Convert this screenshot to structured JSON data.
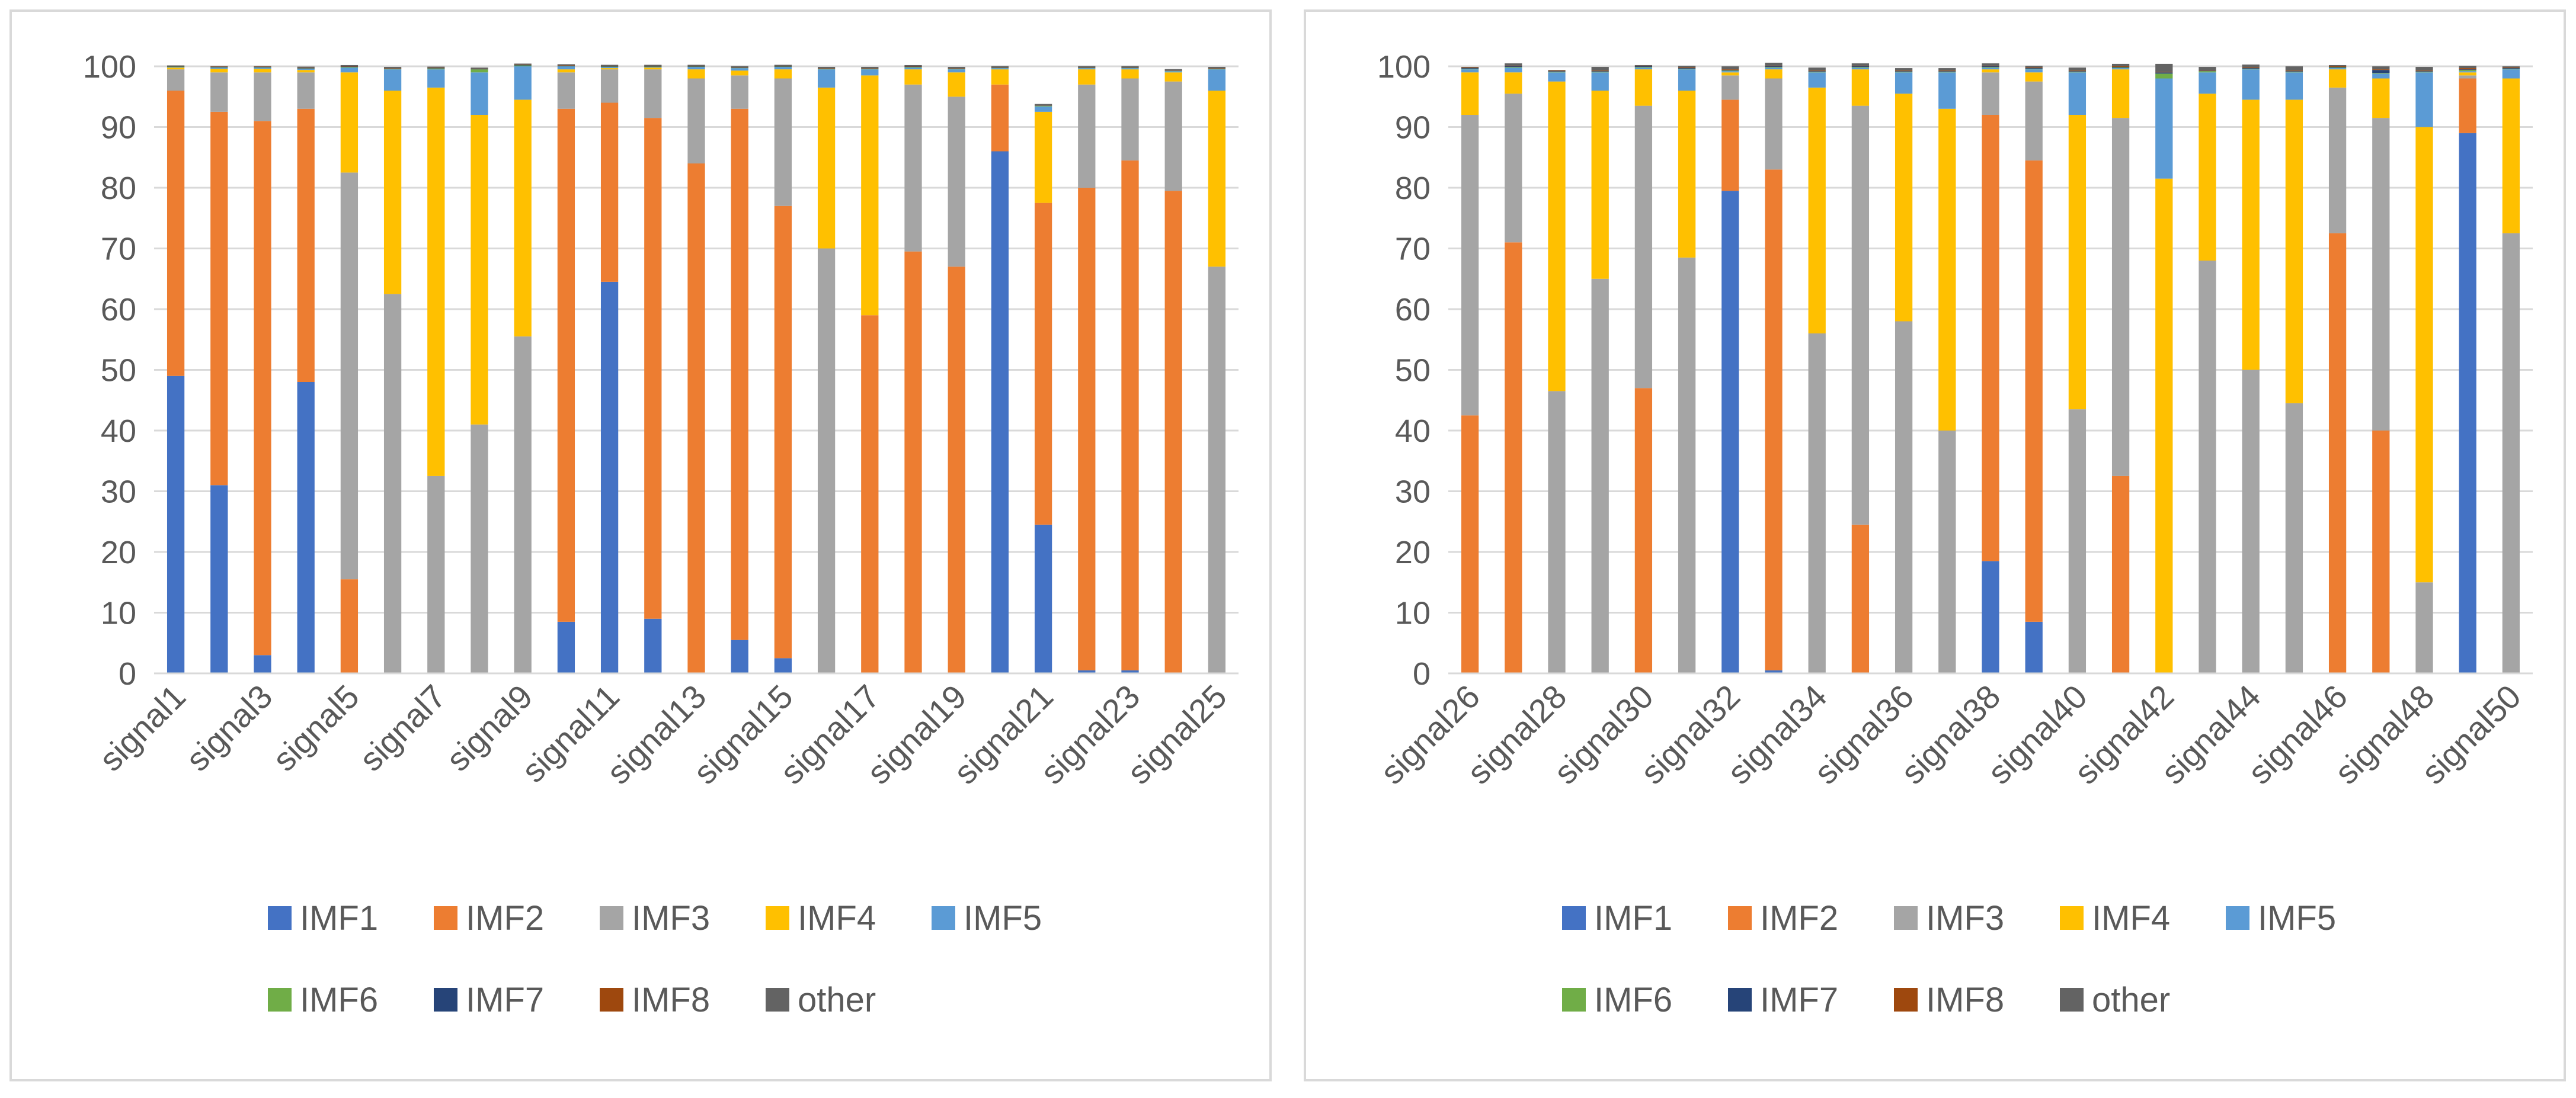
{
  "chart_data": [
    {
      "type": "bar",
      "stacked": true,
      "title": "",
      "xlabel": "",
      "ylabel": "",
      "ylim": [
        0,
        100
      ],
      "yticks": [
        "0",
        "10",
        "20",
        "30",
        "40",
        "50",
        "60",
        "70",
        "80",
        "90",
        "100"
      ],
      "grid": true,
      "legend_position": "bottom",
      "categories": [
        "signal1",
        "signal2",
        "signal3",
        "signal4",
        "signal5",
        "signal6",
        "signal7",
        "signal8",
        "signal9",
        "signal10",
        "signal11",
        "signal12",
        "signal13",
        "signal14",
        "signal15",
        "signal16",
        "signal17",
        "signal18",
        "signal19",
        "signal20",
        "signal21",
        "signal22",
        "signal23",
        "signal24",
        "signal25"
      ],
      "shown_tick_labels": [
        "signal1",
        "signal3",
        "signal5",
        "signal7",
        "signal9",
        "signal11",
        "signal13",
        "signal15",
        "signal17",
        "signal19",
        "signal21",
        "signal23",
        "signal25"
      ],
      "series": [
        {
          "name": "IMF1",
          "color": "#4472C4",
          "values": [
            49,
            31,
            3,
            48,
            0,
            0,
            0,
            0,
            0,
            8.5,
            64.5,
            9,
            0,
            5.5,
            2.5,
            0,
            0,
            0,
            0,
            86,
            24.5,
            0.5,
            0.5,
            0,
            0
          ]
        },
        {
          "name": "IMF2",
          "color": "#ED7D31",
          "values": [
            47,
            61.5,
            88,
            45,
            15.5,
            0,
            0,
            0,
            0,
            84.5,
            29.5,
            82.5,
            84,
            87.5,
            74.5,
            0,
            59,
            69.5,
            67,
            11,
            53,
            79.5,
            84,
            79.5,
            0
          ]
        },
        {
          "name": "IMF3",
          "color": "#A5A5A5",
          "values": [
            3.5,
            6.5,
            8,
            6,
            67,
            62.5,
            32.5,
            41,
            55.5,
            6,
            5.5,
            8,
            14,
            5.5,
            21,
            70,
            0,
            27.5,
            28,
            0,
            0,
            17,
            13.5,
            18,
            67
          ]
        },
        {
          "name": "IMF4",
          "color": "#FFC000",
          "values": [
            0.3,
            0.6,
            0.6,
            0.4,
            16.5,
            33.5,
            64,
            51,
            39,
            0.5,
            0.2,
            0.3,
            1.5,
            0.8,
            1.5,
            26.5,
            39.5,
            2.5,
            4,
            2.5,
            15,
            2.5,
            1.5,
            1.5,
            29
          ]
        },
        {
          "name": "IMF5",
          "color": "#5B9BD5",
          "values": [
            0.1,
            0.2,
            0.2,
            0.2,
            0.8,
            3.5,
            3,
            7,
            5.5,
            0.5,
            0.2,
            0.1,
            0.4,
            0.4,
            0.4,
            3,
            1,
            0.3,
            0.5,
            0.2,
            0.9,
            0.2,
            0.2,
            0.2,
            3.5
          ]
        },
        {
          "name": "IMF6",
          "color": "#70AD47",
          "values": [
            0.05,
            0.05,
            0.05,
            0.05,
            0.1,
            0.1,
            0.15,
            0.5,
            0.15,
            0.05,
            0.05,
            0.05,
            0.05,
            0.05,
            0.05,
            0.1,
            0.1,
            0.1,
            0.1,
            0.05,
            0.1,
            0.05,
            0.05,
            0.05,
            0.1
          ]
        },
        {
          "name": "IMF7",
          "color": "#264478",
          "values": [
            0.05,
            0.05,
            0.05,
            0.05,
            0.05,
            0.05,
            0.05,
            0.05,
            0.05,
            0.05,
            0.05,
            0.05,
            0.05,
            0.05,
            0.05,
            0.05,
            0.05,
            0.05,
            0.05,
            0.05,
            0.05,
            0.05,
            0.05,
            0.05,
            0.05
          ]
        },
        {
          "name": "IMF8",
          "color": "#9E480E",
          "values": [
            0.05,
            0.05,
            0.05,
            0.05,
            0.05,
            0.05,
            0.05,
            0.05,
            0.05,
            0.05,
            0.05,
            0.05,
            0.05,
            0.05,
            0.05,
            0.05,
            0.05,
            0.05,
            0.05,
            0.05,
            0.05,
            0.05,
            0.05,
            0.05,
            0.05
          ]
        },
        {
          "name": "other",
          "color": "#636363",
          "values": [
            0.1,
            0.1,
            0.1,
            0.2,
            0.2,
            0.2,
            0.2,
            0.2,
            0.2,
            0.2,
            0.2,
            0.2,
            0.2,
            0.2,
            0.2,
            0.2,
            0.2,
            0.2,
            0.2,
            0.2,
            0.2,
            0.2,
            0.2,
            0.2,
            0.2
          ]
        }
      ]
    },
    {
      "type": "bar",
      "stacked": true,
      "title": "",
      "xlabel": "",
      "ylabel": "",
      "ylim": [
        0,
        100
      ],
      "yticks": [
        "0",
        "10",
        "20",
        "30",
        "40",
        "50",
        "60",
        "70",
        "80",
        "90",
        "100"
      ],
      "grid": true,
      "legend_position": "bottom",
      "categories": [
        "signal26",
        "signal27",
        "signal28",
        "signal29",
        "signal30",
        "signal31",
        "signal32",
        "signal33",
        "signal34",
        "signal35",
        "signal36",
        "signal37",
        "signal38",
        "signal39",
        "signal40",
        "signal41",
        "signal42",
        "signal43",
        "signal44",
        "signal45",
        "signal46",
        "signal47",
        "signal48",
        "signal49",
        "signal50"
      ],
      "shown_tick_labels": [
        "signal26",
        "signal28",
        "signal30",
        "signal32",
        "signal34",
        "signal36",
        "signal38",
        "signal40",
        "signal42",
        "signal44",
        "signal46",
        "signal48",
        "signal50"
      ],
      "series": [
        {
          "name": "IMF1",
          "color": "#4472C4",
          "values": [
            0,
            0,
            0,
            0,
            0,
            0,
            79.5,
            0.5,
            0,
            0,
            0,
            0,
            18.5,
            8.5,
            0,
            0,
            0,
            0,
            0,
            0,
            0,
            0,
            0,
            89,
            0
          ]
        },
        {
          "name": "IMF2",
          "color": "#ED7D31",
          "values": [
            42.5,
            71,
            0,
            0,
            47,
            0,
            15,
            82.5,
            0,
            24.5,
            0,
            0,
            73.5,
            76,
            0,
            32.5,
            0,
            0,
            0,
            0,
            72.5,
            40,
            0,
            9,
            0
          ]
        },
        {
          "name": "IMF3",
          "color": "#A5A5A5",
          "values": [
            49.5,
            24.5,
            46.5,
            65,
            46.5,
            68.5,
            4,
            15,
            56,
            69,
            58,
            40,
            7,
            13,
            43.5,
            59,
            0,
            68,
            50,
            44.5,
            24,
            51.5,
            15,
            0.5,
            72.5
          ]
        },
        {
          "name": "IMF4",
          "color": "#FFC000",
          "values": [
            7,
            3.5,
            51,
            31,
            6,
            27.5,
            0.5,
            1.5,
            40.5,
            6,
            37.5,
            53,
            0.5,
            1.5,
            48.5,
            8,
            81.5,
            27.5,
            44.5,
            50,
            3,
            6.5,
            75,
            0.5,
            25.5
          ]
        },
        {
          "name": "IMF5",
          "color": "#5B9BD5",
          "values": [
            0.5,
            0.8,
            1.5,
            3,
            0.3,
            3.5,
            0.2,
            0.3,
            2.5,
            0.3,
            3.5,
            6,
            0.3,
            0.5,
            7,
            0.2,
            16.5,
            3.5,
            5,
            4.5,
            0.2,
            0.8,
            9,
            0.2,
            1.5
          ]
        },
        {
          "name": "IMF6",
          "color": "#70AD47",
          "values": [
            0.1,
            0.1,
            0.1,
            0.1,
            0.1,
            0.1,
            0.1,
            0.1,
            0.1,
            0.1,
            0.1,
            0.1,
            0.1,
            0.1,
            0.1,
            0.1,
            0.8,
            0.2,
            0.1,
            0.1,
            0.1,
            0.1,
            0.1,
            0.2,
            0.1
          ]
        },
        {
          "name": "IMF7",
          "color": "#264478",
          "values": [
            0.1,
            0.1,
            0.1,
            0.1,
            0.1,
            0.1,
            0.1,
            0.1,
            0.1,
            0.1,
            0.1,
            0.1,
            0.1,
            0.1,
            0.1,
            0.1,
            0.2,
            0.1,
            0.1,
            0.1,
            0.1,
            0.5,
            0.1,
            0.1,
            0.1
          ]
        },
        {
          "name": "IMF8",
          "color": "#9E480E",
          "values": [
            0.1,
            0.1,
            0.1,
            0.1,
            0.1,
            0.1,
            0.1,
            0.1,
            0.1,
            0.1,
            0.1,
            0.1,
            0.1,
            0.1,
            0.1,
            0.1,
            0.1,
            0.1,
            0.1,
            0.1,
            0.1,
            0.1,
            0.1,
            0.2,
            0.1
          ]
        },
        {
          "name": "other",
          "color": "#636363",
          "values": [
            0.1,
            0.4,
            0.1,
            0.6,
            0.1,
            0.3,
            0.5,
            0.5,
            0.5,
            0.4,
            0.4,
            0.4,
            0.4,
            0.3,
            0.5,
            0.4,
            1.3,
            0.5,
            0.5,
            0.7,
            0.2,
            0.5,
            0.6,
            0.4,
            0.2
          ]
        }
      ]
    }
  ],
  "legend_rows": [
    [
      "IMF1",
      "IMF2",
      "IMF3",
      "IMF4",
      "IMF5"
    ],
    [
      "IMF6",
      "IMF7",
      "IMF8",
      "other"
    ]
  ]
}
